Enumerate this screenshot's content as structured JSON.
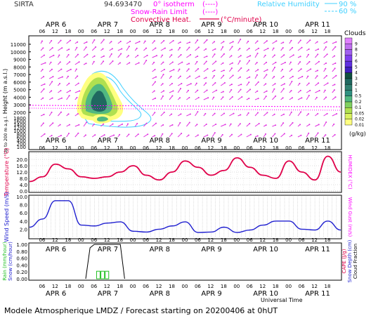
{
  "header": {
    "site": "SIRTA",
    "coords": "94.693470",
    "legend_isotherm": "0° isotherm",
    "legend_isotherm_sym": "(----)",
    "legend_snow_rain": "Snow-Rain Limit",
    "legend_snow_rain_sym": "(----)",
    "legend_convective": "Convective Heat.",
    "legend_convective_unit": "(°C/minute)",
    "rh_label": "Relative Humidity",
    "rh_90": "90 %",
    "rh_60": "60 %"
  },
  "day_labels": [
    "APR 6",
    "APR 7",
    "APR 8",
    "APR 9",
    "APR 10",
    "APR 11"
  ],
  "hour_labels": [
    "06",
    "12",
    "18",
    "00"
  ],
  "footer": {
    "universal_time": "Universal Time",
    "caption": "Modele Atmospherique LMDZ / Forecast starting on 20200406 at 0hUT"
  },
  "colors": {
    "magenta": "#ff00ff",
    "red": "#e0004a",
    "blue": "#2020d0",
    "cyan": "#40d0ff",
    "green": "#20c020"
  },
  "chart_data": [
    {
      "id": "cloud_profile",
      "type": "heatmap",
      "title": "",
      "ylabel": "Height (m a.s.l.)",
      "ylabel2": "Up to 200 m a.g.l.",
      "yticks": [
        11000,
        10000,
        9000,
        8000,
        7000,
        6000,
        5000,
        4000,
        3000,
        2000,
        1800,
        1600,
        1400,
        1200,
        1000,
        800,
        600,
        400,
        200,
        100
      ],
      "colorbar_title": "Clouds",
      "colorbar_unit": "(g/kg)",
      "colorbar_levels": [
        "0.01",
        "0.02",
        "0.05",
        "0.1",
        "0.2",
        "0.5",
        "1",
        "2",
        "3",
        "4",
        "5",
        "6",
        "7",
        "8",
        "9"
      ],
      "colorbar_colors": [
        "#ffff80",
        "#d8f060",
        "#b0e050",
        "#80d060",
        "#50b880",
        "#309080",
        "#308070",
        "#206860",
        "#105040",
        "#4020c0",
        "#6030e0",
        "#8040f0",
        "#a060f0",
        "#c070f0",
        "#e080ff"
      ]
    },
    {
      "id": "temperature",
      "type": "line",
      "ylabel": "Temperature (°C)",
      "ylabel_right": "HUMIDEX (°C)",
      "yticks": [
        "20.0",
        "16.0",
        "12.0",
        "8.0",
        "4.0",
        "0.0"
      ],
      "ylim": [
        0,
        24
      ],
      "x_hours": [
        0,
        6,
        12,
        18,
        24,
        30,
        36,
        42,
        48,
        54,
        60,
        66,
        72,
        78,
        84,
        90,
        96,
        102,
        108,
        114,
        120,
        126,
        132,
        138,
        144
      ],
      "series": [
        {
          "values": [
            6,
            9,
            17,
            14,
            9,
            8,
            9,
            12,
            16,
            10,
            7,
            12,
            19,
            15,
            10,
            13,
            21,
            15,
            10,
            8,
            19,
            12,
            7,
            22,
            12
          ]
        }
      ]
    },
    {
      "id": "wind",
      "type": "line",
      "ylabel": "Wind Speed (m/s)",
      "ylabel_right": "Wind Gust (m/s)",
      "yticks": [
        "10.0",
        "8.0",
        "6.0",
        "4.0",
        "2.0"
      ],
      "ylim": [
        0,
        10
      ],
      "x_hours": [
        0,
        6,
        12,
        18,
        24,
        30,
        36,
        42,
        48,
        54,
        60,
        66,
        72,
        78,
        84,
        90,
        96,
        102,
        108,
        114,
        120,
        126,
        132,
        138,
        144
      ],
      "series": [
        {
          "values": [
            2.5,
            4.5,
            9,
            9,
            3,
            2.8,
            3.5,
            3.8,
            1.5,
            1.3,
            2.0,
            2.8,
            3.8,
            1.2,
            1.3,
            2.5,
            1.2,
            1.8,
            3.0,
            4.0,
            4.0,
            2.0,
            1.8,
            4.0,
            1.8
          ]
        }
      ]
    },
    {
      "id": "precip",
      "type": "bar",
      "ylabel": "Rain (mm/hour)",
      "ylabel2": "Snow (cm/hour)",
      "ylabel_right": "CAPE (J/g)",
      "ylabel_right2": "Snow Depth (cm)",
      "ylabel_right3": "Cloud Fraction",
      "yticks": [
        "1.00",
        "0.80",
        "0.60",
        "0.40",
        "0.20",
        "0.00"
      ],
      "ylim": [
        0,
        1
      ],
      "rain_bars": [
        {
          "hour": 32,
          "value": 0.22
        },
        {
          "hour": 34,
          "value": 0.22
        },
        {
          "hour": 36,
          "value": 0.22
        }
      ],
      "cloud_fraction": [
        {
          "hour": 26,
          "value": 0.0
        },
        {
          "hour": 28,
          "value": 0.9
        },
        {
          "hour": 30,
          "value": 1.0
        },
        {
          "hour": 42,
          "value": 1.0
        },
        {
          "hour": 44,
          "value": 0.0
        }
      ]
    }
  ]
}
